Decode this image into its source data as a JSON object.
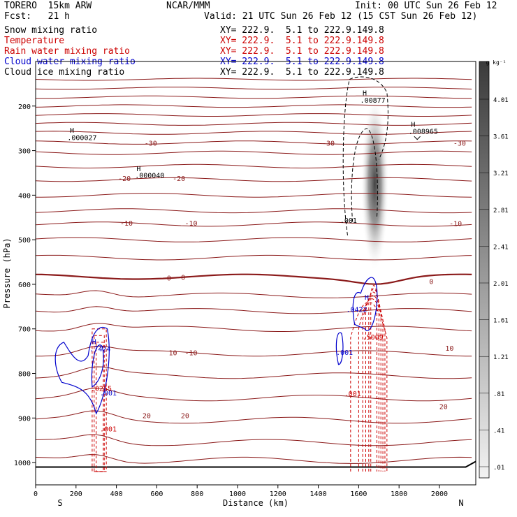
{
  "header": {
    "model": "TORERO  15km ARW",
    "forecast": "Fcst:   21 h",
    "center": "NCAR/MMM",
    "init": "Init: 00 UTC Sun 26 Feb 12",
    "valid": "Valid: 21 UTC Sun 26 Feb 12 (15 CST Sun 26 Feb 12)"
  },
  "legend": [
    {
      "name": "Snow mixing ratio",
      "color": "#000000",
      "xy": ""
    },
    {
      "name": "Temperature",
      "color": "#cc0000",
      "xy": "XY= 222.9.  5.1 to 222.9.149.8"
    },
    {
      "name": "Rain water mixing ratio",
      "color": "#cc0000",
      "xy": "XY= 222.9.  5.1 to 222.9.149.8"
    },
    {
      "name": "Cloud water mixing ratio",
      "color": "#0000cc",
      "xy": "XY= 222.9.  5.1 to 222.9.149.8"
    },
    {
      "name": "Cloud ice mixing ratio",
      "color": "#000000",
      "xy": "XY= 222.9.  5.1 to 222.9.149.8"
    }
  ],
  "snow_xy": "XY= 222.9.  5.1 to 222.9.149.8",
  "chart_data": {
    "type": "contour",
    "xlabel": "Distance (km)",
    "ylabel": "Pressure (hPa)",
    "xlim": [
      0,
      2180
    ],
    "ylim": [
      1050,
      100
    ],
    "xticks": [
      0,
      200,
      400,
      600,
      800,
      1000,
      1200,
      1400,
      1600,
      1800,
      2000
    ],
    "yticks": [
      200,
      300,
      400,
      500,
      600,
      700,
      800,
      900,
      1000
    ],
    "orientation": {
      "left": "S",
      "right": "N"
    },
    "colorbar": {
      "unit": "g kg⁻¹",
      "ticks": [
        "4.01",
        "3.61",
        "3.21",
        "2.81",
        "2.41",
        "2.01",
        "1.61",
        "1.21",
        ".81",
        ".41",
        ".01"
      ]
    },
    "temperature_labels": [
      {
        "text": "-30",
        "x": 570,
        "p": 283
      },
      {
        "text": "-30",
        "x": 1450,
        "p": 283
      },
      {
        "text": "-30",
        "x": 2100,
        "p": 283
      },
      {
        "text": "-20",
        "x": 440,
        "p": 362
      },
      {
        "text": "-20",
        "x": 710,
        "p": 362
      },
      {
        "text": "-10",
        "x": 450,
        "p": 462
      },
      {
        "text": "-10",
        "x": 770,
        "p": 462
      },
      {
        "text": "-10",
        "x": 2080,
        "p": 463
      },
      {
        "text": "-0",
        "x": 650,
        "p": 585
      },
      {
        "text": "-0",
        "x": 720,
        "p": 584
      },
      {
        "text": "0",
        "x": 1960,
        "p": 593
      },
      {
        "text": "10",
        "x": 680,
        "p": 753
      },
      {
        "text": "-10",
        "x": 770,
        "p": 753
      },
      {
        "text": "10",
        "x": 2050,
        "p": 743
      },
      {
        "text": "20",
        "x": 550,
        "p": 894
      },
      {
        "text": "20",
        "x": 740,
        "p": 894
      },
      {
        "text": "20",
        "x": 2020,
        "p": 874
      }
    ],
    "value_labels": [
      {
        "text": "H",
        "x": 180,
        "p": 254,
        "color": "#000000"
      },
      {
        "text": ".000027",
        "x": 230,
        "p": 270,
        "color": "#000000"
      },
      {
        "text": "H",
        "x": 510,
        "p": 340,
        "color": "#000000"
      },
      {
        "text": ".000040",
        "x": 565,
        "p": 355,
        "color": "#000000"
      },
      {
        "text": "H",
        "x": 1630,
        "p": 170,
        "color": "#000000"
      },
      {
        "text": ".00877",
        "x": 1670,
        "p": 186,
        "color": "#000000"
      },
      {
        "text": "H",
        "x": 1870,
        "p": 240,
        "color": "#000000"
      },
      {
        "text": ".008965",
        "x": 1920,
        "p": 256,
        "color": "#000000"
      },
      {
        "text": ".001",
        "x": 1550,
        "p": 456,
        "color": "#000000"
      },
      {
        "text": "H",
        "x": 1640,
        "p": 628,
        "color": "#0000cc"
      },
      {
        "text": ".0422",
        "x": 1590,
        "p": 656,
        "color": "#0000cc"
      },
      {
        "text": ".5009",
        "x": 1670,
        "p": 718,
        "color": "#cc0000"
      },
      {
        "text": ".001",
        "x": 1530,
        "p": 752,
        "color": "#0000cc"
      },
      {
        "text": ".001",
        "x": 1570,
        "p": 845,
        "color": "#cc0000"
      },
      {
        "text": "H",
        "x": 290,
        "p": 728,
        "color": "#0000cc"
      },
      {
        "text": ".7424",
        "x": 320,
        "p": 744,
        "color": "#0000cc"
      },
      {
        "text": ".0255",
        "x": 325,
        "p": 833,
        "color": "#cc0000"
      },
      {
        "text": ".001",
        "x": 360,
        "p": 843,
        "color": "#0000cc"
      },
      {
        "text": ".001",
        "x": 360,
        "p": 924,
        "color": "#cc0000"
      }
    ],
    "isotherm_base_pressures": [
      140,
      160,
      180,
      200,
      220,
      240,
      260,
      282,
      305,
      335,
      365,
      400,
      435,
      465,
      500,
      540,
      583,
      625,
      660,
      700,
      755,
      805,
      855,
      905,
      955,
      995
    ],
    "snow_shading": {
      "center_x": 1680,
      "p_top": 180,
      "p_bottom": 570,
      "max": 4.01
    },
    "surface_pressure": 1010
  }
}
